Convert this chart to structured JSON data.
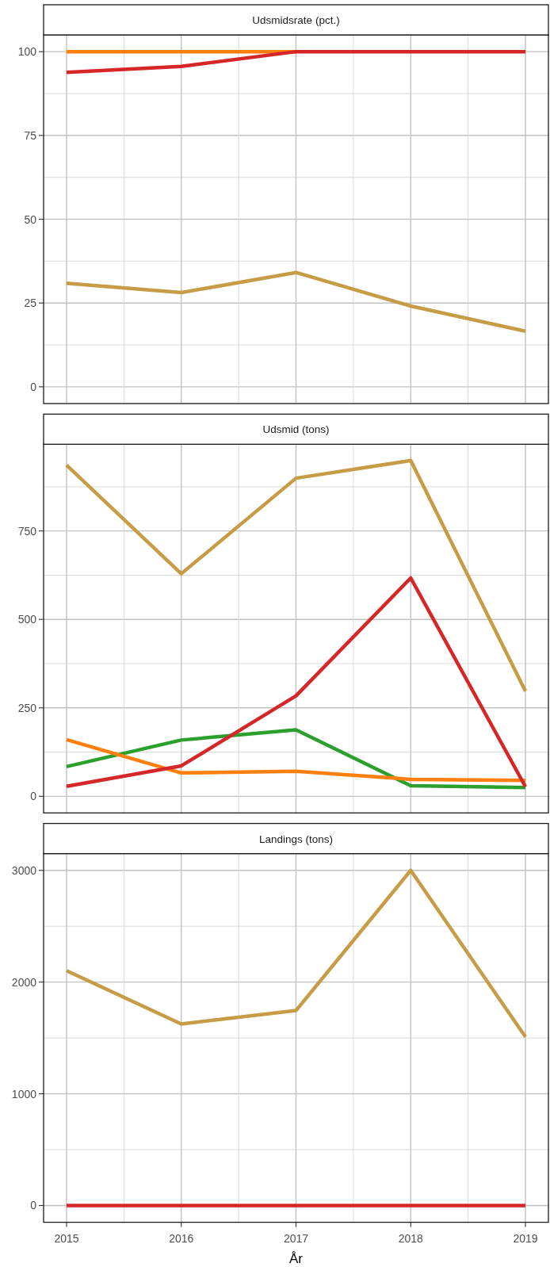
{
  "chart_data": [
    {
      "type": "line",
      "title": "Udsmidsrate (pct.)",
      "x": [
        2015,
        2016,
        2017,
        2018,
        2019
      ],
      "xlim": [
        2014.8,
        2019.2
      ],
      "xticks": [
        2015,
        {
          "value": 2015.5,
          "label": null
        },
        2016,
        {
          "value": 2016.5,
          "label": null
        },
        2017,
        {
          "value": 2017.5,
          "label": null
        },
        2018,
        {
          "value": 2018.5,
          "label": null
        },
        2019
      ],
      "ylim": [
        -5,
        105
      ],
      "yticks": [
        0,
        {
          "value": 12.5,
          "label": null
        },
        25,
        {
          "value": 37.5,
          "label": null
        },
        50,
        {
          "value": 62.5,
          "label": null
        },
        75,
        {
          "value": 87.5,
          "label": null
        },
        100
      ],
      "grid": true,
      "tick_labels": "y",
      "series": [
        {
          "color": "#c69c47",
          "values": [
            30.9,
            28.1,
            34.1,
            24.1,
            16.6
          ]
        },
        {
          "color": "#ff7f0e",
          "values": [
            100,
            100,
            100,
            null,
            null
          ]
        },
        {
          "color": "#d62728",
          "values": [
            93.8,
            95.6,
            100,
            100,
            100
          ]
        }
      ]
    },
    {
      "type": "line",
      "title": "Udsmid (tons)",
      "x": [
        2015,
        2016,
        2017,
        2018,
        2019
      ],
      "xlim": [
        2014.8,
        2019.2
      ],
      "xticks": [
        2015,
        {
          "value": 2015.5,
          "label": null
        },
        2016,
        {
          "value": 2016.5,
          "label": null
        },
        2017,
        {
          "value": 2017.5,
          "label": null
        },
        2018,
        {
          "value": 2018.5,
          "label": null
        },
        2019
      ],
      "ylim": [
        -47,
        995
      ],
      "yticks": [
        0,
        {
          "value": 125,
          "label": null
        },
        250,
        {
          "value": 375,
          "label": null
        },
        500,
        {
          "value": 625,
          "label": null
        },
        750,
        {
          "value": 875,
          "label": null
        }
      ],
      "grid": true,
      "tick_labels": "y",
      "series": [
        {
          "color": "#c69c47",
          "values": [
            936,
            629,
            899,
            949,
            297
          ]
        },
        {
          "color": "#2ca02c",
          "values": [
            84,
            159,
            188,
            30,
            25
          ]
        },
        {
          "color": "#ff7f0e",
          "values": [
            160,
            66,
            71,
            48,
            45
          ]
        },
        {
          "color": "#d62728",
          "values": [
            28,
            86,
            284,
            617,
            27
          ]
        }
      ]
    },
    {
      "type": "line",
      "title": "Landings (tons)",
      "xlabel": "År",
      "x": [
        2015,
        2016,
        2017,
        2018,
        2019
      ],
      "xlim": [
        2014.8,
        2019.2
      ],
      "xticks": [
        2015,
        {
          "value": 2015.5,
          "label": null
        },
        2016,
        {
          "value": 2016.5,
          "label": null
        },
        2017,
        {
          "value": 2017.5,
          "label": null
        },
        2018,
        {
          "value": 2018.5,
          "label": null
        },
        2019
      ],
      "ylim": [
        -150,
        3150
      ],
      "yticks": [
        0,
        {
          "value": 500,
          "label": null
        },
        1000,
        {
          "value": 1500,
          "label": null
        },
        2000,
        {
          "value": 2500,
          "label": null
        },
        3000
      ],
      "grid": true,
      "series": [
        {
          "color": "#c69c47",
          "values": [
            2102,
            1625,
            1745,
            3000,
            1509
          ]
        },
        {
          "color": "#d62728",
          "values": [
            0,
            0,
            0,
            0,
            0
          ]
        }
      ]
    }
  ]
}
